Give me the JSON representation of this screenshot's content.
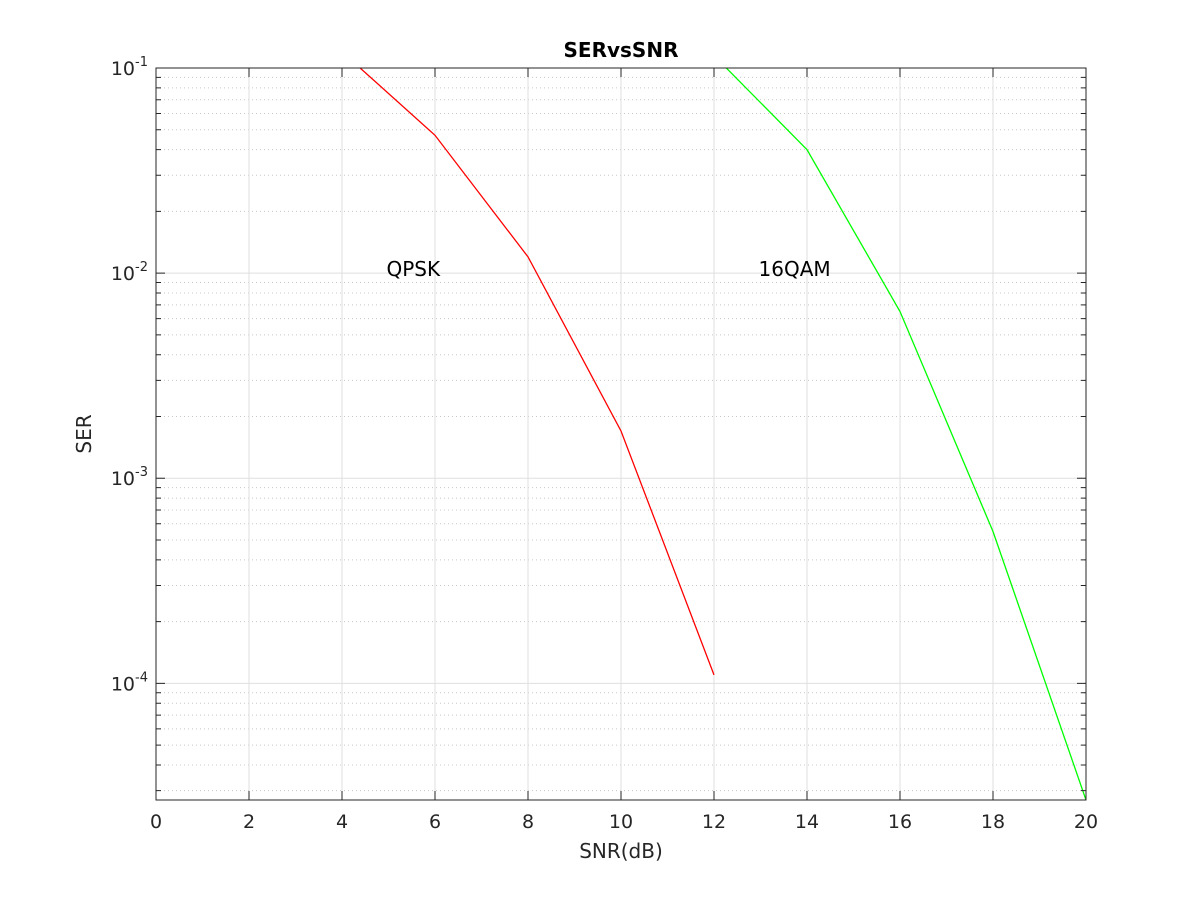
{
  "chart_data": {
    "type": "line",
    "title": "SERvsSNR",
    "xlabel": "SNR(dB)",
    "ylabel": "SER",
    "xlim": [
      0,
      20
    ],
    "ylim": [
      2.7e-05,
      0.1
    ],
    "yscale": "log",
    "grid": true,
    "x_ticks": [
      0,
      2,
      4,
      6,
      8,
      10,
      12,
      14,
      16,
      18,
      20
    ],
    "x_tick_labels": [
      "0",
      "2",
      "4",
      "6",
      "8",
      "10",
      "12",
      "14",
      "16",
      "18",
      "20"
    ],
    "y_ticks": [
      {
        "value": 0.1,
        "base": "10",
        "exp": "-1"
      },
      {
        "value": 0.01,
        "base": "10",
        "exp": "-2"
      },
      {
        "value": 0.001,
        "base": "10",
        "exp": "-3"
      },
      {
        "value": 0.0001,
        "base": "10",
        "exp": "-4"
      }
    ],
    "series": [
      {
        "label": "QPSK",
        "color": "#ff0000",
        "x": [
          4,
          6,
          8,
          10,
          12
        ],
        "y": [
          0.12,
          0.047,
          0.012,
          0.0017,
          0.00011
        ]
      },
      {
        "label": "16QAM",
        "color": "#00ff00",
        "x": [
          12,
          14,
          16,
          18,
          20
        ],
        "y": [
          0.115,
          0.04,
          0.0065,
          0.00055,
          2.7e-05
        ]
      }
    ],
    "annotations": [
      {
        "text": "QPSK",
        "x": 5.0,
        "y": 0.0105
      },
      {
        "text": "16QAM",
        "x": 13.0,
        "y": 0.0105
      }
    ]
  }
}
